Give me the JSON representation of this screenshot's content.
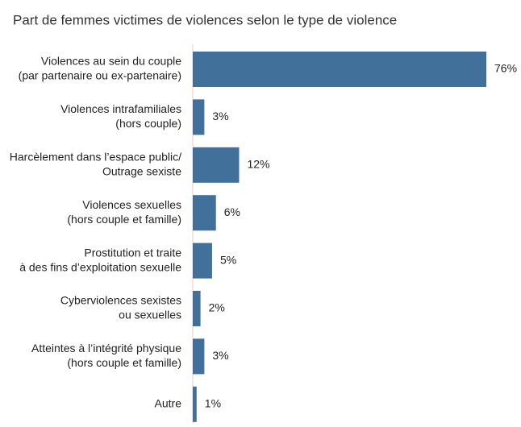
{
  "chart_data": {
    "type": "bar",
    "orientation": "horizontal",
    "title": "Part de femmes victimes de violences selon le type de violence",
    "categories": [
      [
        "Violences au sein du couple",
        "(par partenaire ou ex-partenaire)"
      ],
      [
        "Violences intrafamiliales",
        "(hors couple)"
      ],
      [
        "Harcèlement dans l’espace public/",
        "Outrage sexiste"
      ],
      [
        "Violences sexuelles",
        "(hors couple et famille)"
      ],
      [
        "Prostitution et traite",
        "à des fins d’exploitation sexuelle"
      ],
      [
        "Cyberviolences sexistes",
        "ou sexuelles"
      ],
      [
        "Atteintes à l’intégrité physique",
        "(hors couple et famille)"
      ],
      [
        "Autre"
      ]
    ],
    "values": [
      76,
      3,
      12,
      6,
      5,
      2,
      3,
      1
    ],
    "value_labels": [
      "76%",
      "3%",
      "12%",
      "6%",
      "5%",
      "2%",
      "3%",
      "1%"
    ],
    "color": "#41709a"
  }
}
